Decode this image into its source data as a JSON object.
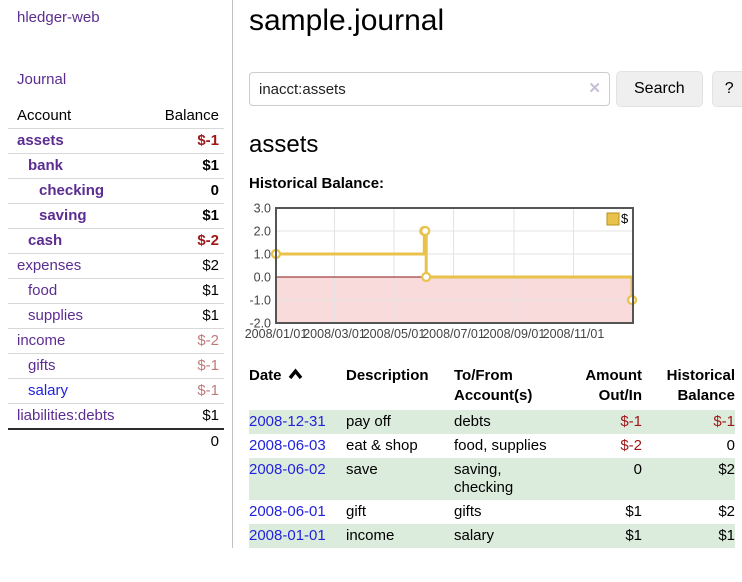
{
  "app": {
    "brand": "hledger-web",
    "nav": {
      "journal": "Journal"
    }
  },
  "sidebar": {
    "columns": {
      "account": "Account",
      "balance": "Balance"
    },
    "accounts": [
      {
        "name": "assets",
        "balance": "$-1"
      },
      {
        "name": "bank",
        "balance": "$1"
      },
      {
        "name": "checking",
        "balance": "0"
      },
      {
        "name": "saving",
        "balance": "$1"
      },
      {
        "name": "cash",
        "balance": "$-2"
      },
      {
        "name": "expenses",
        "balance": "$2"
      },
      {
        "name": "food",
        "balance": "$1"
      },
      {
        "name": "supplies",
        "balance": "$1"
      },
      {
        "name": "income",
        "balance": "$-2"
      },
      {
        "name": "gifts",
        "balance": "$-1"
      },
      {
        "name": "salary",
        "balance": "$-1"
      },
      {
        "name": "liabilities:debts",
        "balance": "$1"
      }
    ],
    "total": "0"
  },
  "main": {
    "title": "sample.journal",
    "search": {
      "value": "inacct:assets",
      "clear": "✕",
      "button": "Search",
      "help": "?"
    },
    "account_title": "assets",
    "chart_heading": "Historical Balance:"
  },
  "chart_data": {
    "type": "line",
    "step": true,
    "title": "Historical Balance",
    "series": [
      {
        "name": "$",
        "color": "#e8c24a",
        "points": [
          [
            "2008-01-01",
            1
          ],
          [
            "2008-06-01",
            2
          ],
          [
            "2008-06-02",
            2
          ],
          [
            "2008-06-03",
            0
          ],
          [
            "2008-12-31",
            -1
          ]
        ]
      }
    ],
    "x_range": [
      "2008-01-01",
      "2009-01-01"
    ],
    "ylim": [
      -2,
      3
    ],
    "y_ticks": [
      3,
      2,
      1,
      0,
      -1,
      -2
    ],
    "x_ticks": [
      {
        "date": "2008-01-01",
        "label": "2008/01/01"
      },
      {
        "date": "2008-03-01",
        "label": "2008/03/01"
      },
      {
        "date": "2008-05-01",
        "label": "2008/05/01"
      },
      {
        "date": "2008-07-01",
        "label": "2008/07/01"
      },
      {
        "date": "2008-09-01",
        "label": "2008/09/01"
      },
      {
        "date": "2008-11-01",
        "label": "2008/11/01"
      }
    ],
    "legend": {
      "label": "$",
      "position": "top-right"
    },
    "grid": true,
    "negative_region": true
  },
  "register": {
    "headers": {
      "date": "Date",
      "description": "Description",
      "tofrom": "To/From Account(s)",
      "amount": "Amount Out/In",
      "historical": "Historical Balance"
    },
    "rows": [
      {
        "date": "2008-12-31",
        "description": "pay off",
        "accounts": "debts",
        "amount": "$-1",
        "historical": "$-1"
      },
      {
        "date": "2008-06-03",
        "description": "eat & shop",
        "accounts": "food, supplies",
        "amount": "$-2",
        "historical": "0"
      },
      {
        "date": "2008-06-02",
        "description": "save",
        "accounts": "saving, checking",
        "amount": "0",
        "historical": "$2"
      },
      {
        "date": "2008-06-01",
        "description": "gift",
        "accounts": "gifts",
        "amount": "$1",
        "historical": "$2"
      },
      {
        "date": "2008-01-01",
        "description": "income",
        "accounts": "salary",
        "amount": "$1",
        "historical": "$1"
      }
    ]
  },
  "colors": {
    "accent_purple": "#5c2d91",
    "link_blue": "#2222dd",
    "negative_red": "#9e1616",
    "muted_rose": "#c07a7a",
    "row_green": "#dcecdc",
    "chart_gold": "#e8c24a",
    "chart_gold_border": "#b8921e",
    "chart_negative_bg": "#f9dbdb",
    "chart_zero_line": "#871414",
    "chart_grid": "#e3e3e3",
    "chart_border": "#555555",
    "axis_text": "#444444"
  }
}
